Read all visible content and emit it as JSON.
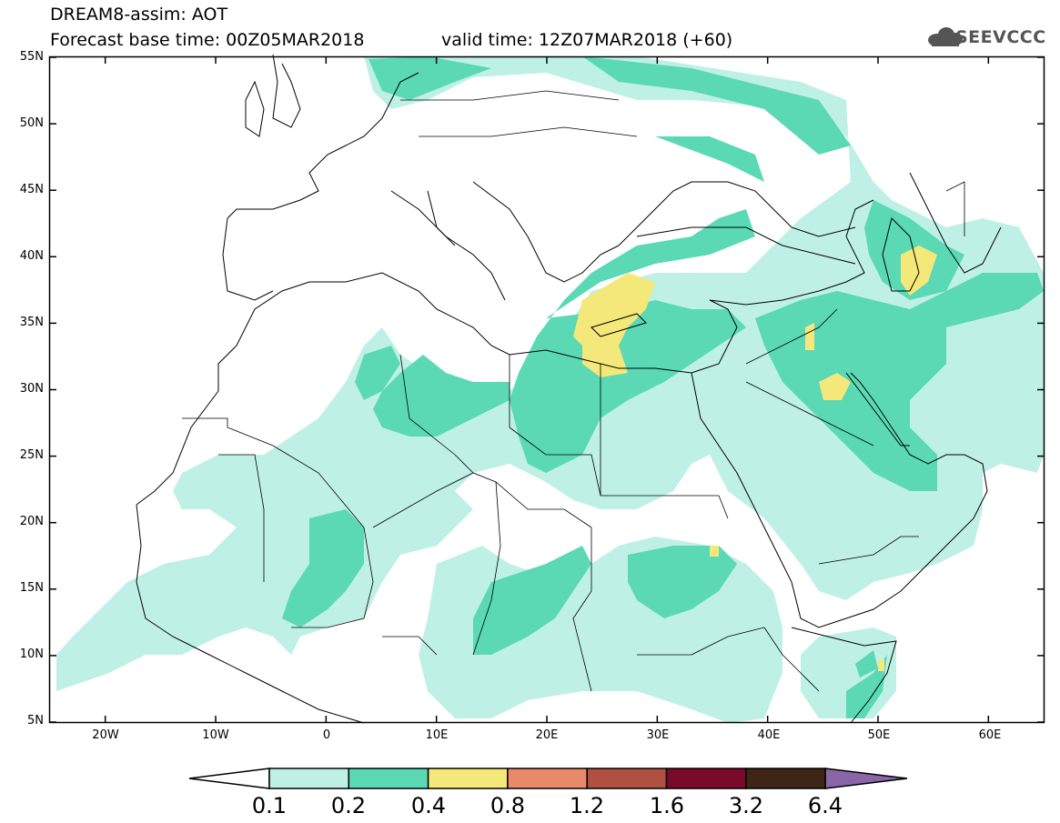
{
  "header": {
    "title_line1": "DREAM8-assim: AOT",
    "title_line2": "Forecast base time: 00Z05MAR2018",
    "valid_time": "valid time: 12Z07MAR2018 (+60)",
    "logo_text": "SEEVCCC"
  },
  "map": {
    "lat_labels": [
      "55N",
      "50N",
      "45N",
      "40N",
      "35N",
      "30N",
      "25N",
      "20N",
      "15N",
      "10N",
      "5N"
    ],
    "lon_labels": [
      "20W",
      "10W",
      "0",
      "10E",
      "20E",
      "30E",
      "40E",
      "50E",
      "60E"
    ],
    "lon_range": [
      -25,
      65
    ],
    "lat_range": [
      5,
      55
    ]
  },
  "legend": {
    "levels": [
      "0.1",
      "0.2",
      "0.4",
      "0.8",
      "1.2",
      "1.6",
      "3.2",
      "6.4"
    ],
    "colors": [
      "#ffffff",
      "#bff0e6",
      "#5ad9b4",
      "#f5e87a",
      "#e8896a",
      "#b05040",
      "#7a0a2a",
      "#3f2515",
      "#8a66a8"
    ]
  }
}
